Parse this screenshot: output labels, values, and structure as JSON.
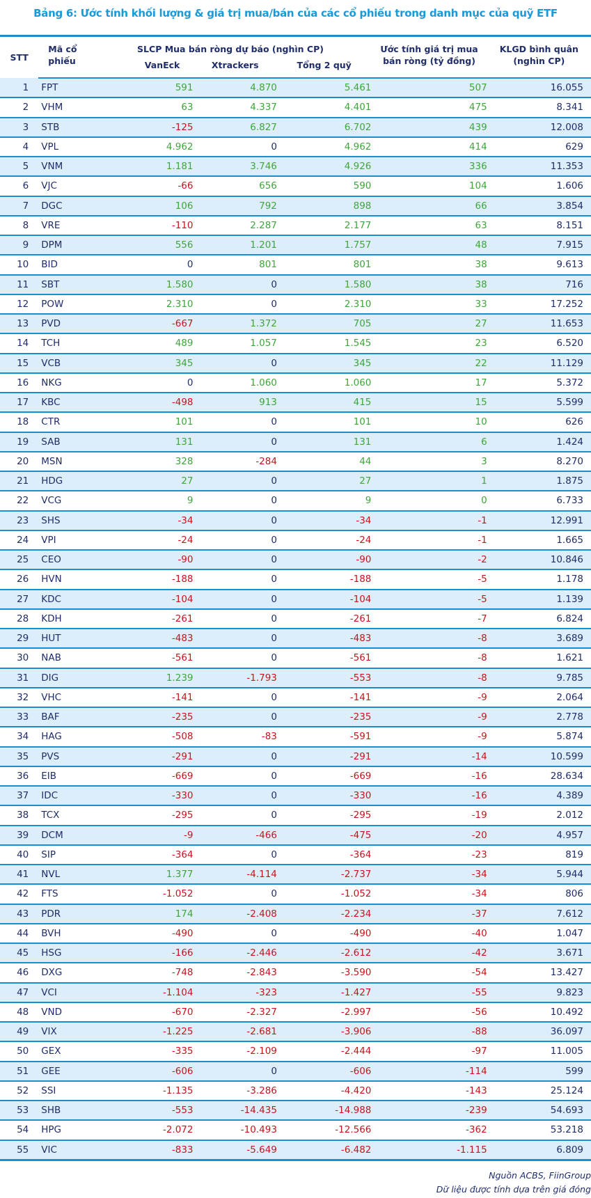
{
  "title": "Bảng 6: Ước tính khối lượng & giá trị mua/bán của các cổ phiếu trong danh mục của quỹ ETF",
  "headers": {
    "stt": "STT",
    "code_1": "Mã cổ",
    "code_2": "phiếu",
    "slcp": "SLCP Mua bán ròng dự báo (nghìn CP)",
    "vaneck": "VanEck",
    "xtrackers": "Xtrackers",
    "total": "Tổng 2 quỹ",
    "value_1": "Ước tính giá trị mua",
    "value_2": "bán ròng (tỷ đồng)",
    "klgd_1": "KLGD bình quân",
    "klgd_2": "(nghìn CP)"
  },
  "colors": {
    "positive": "#3ea63a",
    "negative": "#c3161c",
    "neutral": "#1f2d6a",
    "accent": "#1a8fd0"
  },
  "rows": [
    [
      "1",
      "FPT",
      "591",
      "4.870",
      "5.461",
      "507",
      "16.055"
    ],
    [
      "2",
      "VHM",
      "63",
      "4.337",
      "4.401",
      "475",
      "8.341"
    ],
    [
      "3",
      "STB",
      "-125",
      "6.827",
      "6.702",
      "439",
      "12.008"
    ],
    [
      "4",
      "VPL",
      "4.962",
      "0",
      "4.962",
      "414",
      "629"
    ],
    [
      "5",
      "VNM",
      "1.181",
      "3.746",
      "4.926",
      "336",
      "11.353"
    ],
    [
      "6",
      "VJC",
      "-66",
      "656",
      "590",
      "104",
      "1.606"
    ],
    [
      "7",
      "DGC",
      "106",
      "792",
      "898",
      "66",
      "3.854"
    ],
    [
      "8",
      "VRE",
      "-110",
      "2.287",
      "2.177",
      "63",
      "8.151"
    ],
    [
      "9",
      "DPM",
      "556",
      "1.201",
      "1.757",
      "48",
      "7.915"
    ],
    [
      "10",
      "BID",
      "0",
      "801",
      "801",
      "38",
      "9.613"
    ],
    [
      "11",
      "SBT",
      "1.580",
      "0",
      "1.580",
      "38",
      "716"
    ],
    [
      "12",
      "POW",
      "2.310",
      "0",
      "2.310",
      "33",
      "17.252"
    ],
    [
      "13",
      "PVD",
      "-667",
      "1.372",
      "705",
      "27",
      "11.653"
    ],
    [
      "14",
      "TCH",
      "489",
      "1.057",
      "1.545",
      "23",
      "6.520"
    ],
    [
      "15",
      "VCB",
      "345",
      "0",
      "345",
      "22",
      "11.129"
    ],
    [
      "16",
      "NKG",
      "0",
      "1.060",
      "1.060",
      "17",
      "5.372"
    ],
    [
      "17",
      "KBC",
      "-498",
      "913",
      "415",
      "15",
      "5.599"
    ],
    [
      "18",
      "CTR",
      "101",
      "0",
      "101",
      "10",
      "626"
    ],
    [
      "19",
      "SAB",
      "131",
      "0",
      "131",
      "6",
      "1.424"
    ],
    [
      "20",
      "MSN",
      "328",
      "-284",
      "44",
      "3",
      "8.270"
    ],
    [
      "21",
      "HDG",
      "27",
      "0",
      "27",
      "1",
      "1.875"
    ],
    [
      "22",
      "VCG",
      "9",
      "0",
      "9",
      "0",
      "6.733"
    ],
    [
      "23",
      "SHS",
      "-34",
      "0",
      "-34",
      "-1",
      "12.991"
    ],
    [
      "24",
      "VPI",
      "-24",
      "0",
      "-24",
      "-1",
      "1.665"
    ],
    [
      "25",
      "CEO",
      "-90",
      "0",
      "-90",
      "-2",
      "10.846"
    ],
    [
      "26",
      "HVN",
      "-188",
      "0",
      "-188",
      "-5",
      "1.178"
    ],
    [
      "27",
      "KDC",
      "-104",
      "0",
      "-104",
      "-5",
      "1.139"
    ],
    [
      "28",
      "KDH",
      "-261",
      "0",
      "-261",
      "-7",
      "6.824"
    ],
    [
      "29",
      "HUT",
      "-483",
      "0",
      "-483",
      "-8",
      "3.689"
    ],
    [
      "30",
      "NAB",
      "-561",
      "0",
      "-561",
      "-8",
      "1.621"
    ],
    [
      "31",
      "DIG",
      "1.239",
      "-1.793",
      "-553",
      "-8",
      "9.785"
    ],
    [
      "32",
      "VHC",
      "-141",
      "0",
      "-141",
      "-9",
      "2.064"
    ],
    [
      "33",
      "BAF",
      "-235",
      "0",
      "-235",
      "-9",
      "2.778"
    ],
    [
      "34",
      "HAG",
      "-508",
      "-83",
      "-591",
      "-9",
      "5.874"
    ],
    [
      "35",
      "PVS",
      "-291",
      "0",
      "-291",
      "-14",
      "10.599"
    ],
    [
      "36",
      "EIB",
      "-669",
      "0",
      "-669",
      "-16",
      "28.634"
    ],
    [
      "37",
      "IDC",
      "-330",
      "0",
      "-330",
      "-16",
      "4.389"
    ],
    [
      "38",
      "TCX",
      "-295",
      "0",
      "-295",
      "-19",
      "2.012"
    ],
    [
      "39",
      "DCM",
      "-9",
      "-466",
      "-475",
      "-20",
      "4.957"
    ],
    [
      "40",
      "SIP",
      "-364",
      "0",
      "-364",
      "-23",
      "819"
    ],
    [
      "41",
      "NVL",
      "1.377",
      "-4.114",
      "-2.737",
      "-34",
      "5.944"
    ],
    [
      "42",
      "FTS",
      "-1.052",
      "0",
      "-1.052",
      "-34",
      "806"
    ],
    [
      "43",
      "PDR",
      "174",
      "-2.408",
      "-2.234",
      "-37",
      "7.612"
    ],
    [
      "44",
      "BVH",
      "-490",
      "0",
      "-490",
      "-40",
      "1.047"
    ],
    [
      "45",
      "HSG",
      "-166",
      "-2.446",
      "-2.612",
      "-42",
      "3.671"
    ],
    [
      "46",
      "DXG",
      "-748",
      "-2.843",
      "-3.590",
      "-54",
      "13.427"
    ],
    [
      "47",
      "VCI",
      "-1.104",
      "-323",
      "-1.427",
      "-55",
      "9.823"
    ],
    [
      "48",
      "VND",
      "-670",
      "-2.327",
      "-2.997",
      "-56",
      "10.492"
    ],
    [
      "49",
      "VIX",
      "-1.225",
      "-2.681",
      "-3.906",
      "-88",
      "36.097"
    ],
    [
      "50",
      "GEX",
      "-335",
      "-2.109",
      "-2.444",
      "-97",
      "11.005"
    ],
    [
      "51",
      "GEE",
      "-606",
      "0",
      "-606",
      "-114",
      "599"
    ],
    [
      "52",
      "SSI",
      "-1.135",
      "-3.286",
      "-4.420",
      "-143",
      "25.124"
    ],
    [
      "53",
      "SHB",
      "-553",
      "-14.435",
      "-14.988",
      "-239",
      "54.693"
    ],
    [
      "54",
      "HPG",
      "-2.072",
      "-10.493",
      "-12.566",
      "-362",
      "53.218"
    ],
    [
      "55",
      "VIC",
      "-833",
      "-5.649",
      "-6.482",
      "-1.115",
      "6.809"
    ]
  ],
  "green_zero_cells": [
    [
      "22",
      5
    ]
  ],
  "footer": {
    "source": "Nguồn ACBS, FiinGroup",
    "note": "Dữ liệu được tính dựa trên giá đóng"
  }
}
